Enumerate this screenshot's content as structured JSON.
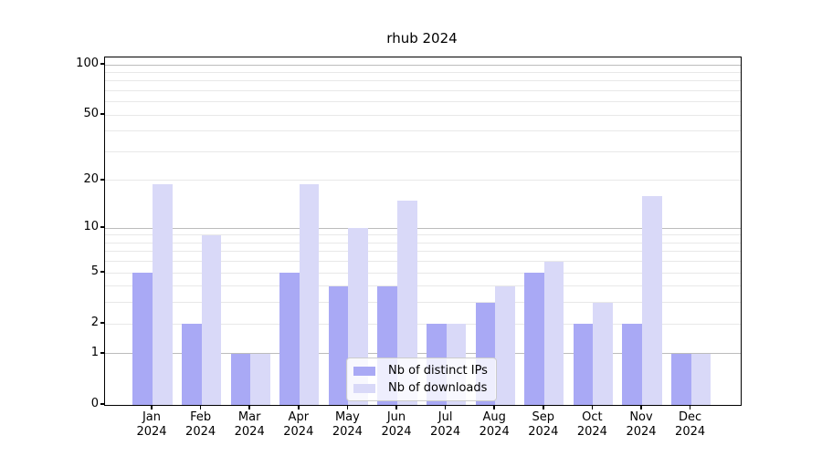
{
  "chart_data": {
    "type": "bar",
    "title": "rhub 2024",
    "categories": [
      "Jan 2024",
      "Feb 2024",
      "Mar 2024",
      "Apr 2024",
      "May 2024",
      "Jun 2024",
      "Jul 2024",
      "Aug 2024",
      "Sep 2024",
      "Oct 2024",
      "Nov 2024",
      "Dec 2024"
    ],
    "series": [
      {
        "name": "Nb of distinct IPs",
        "color": "#a9a9f5",
        "values": [
          5,
          2,
          1,
          5,
          4,
          4,
          2,
          3,
          5,
          2,
          2,
          1
        ]
      },
      {
        "name": "Nb of downloads",
        "color": "#d9d9f8",
        "values": [
          19,
          9,
          1,
          19,
          10,
          15,
          2,
          4,
          6,
          3,
          16,
          1
        ]
      }
    ],
    "xlabel": "",
    "ylabel": "",
    "yscale": "log1p",
    "ylim": [
      0,
      110
    ],
    "y_ticks": [
      0,
      1,
      2,
      5,
      10,
      20,
      50,
      100
    ],
    "y_minor_gridlines": [
      3,
      4,
      6,
      7,
      8,
      9,
      30,
      40,
      60,
      70,
      80,
      90
    ],
    "grid": true,
    "legend_position": "lower center"
  },
  "colors": {
    "grid_major": "#bcbcbc",
    "grid_minor": "#e8e8e8",
    "axis": "#000000",
    "legend_border": "#cccccc"
  }
}
